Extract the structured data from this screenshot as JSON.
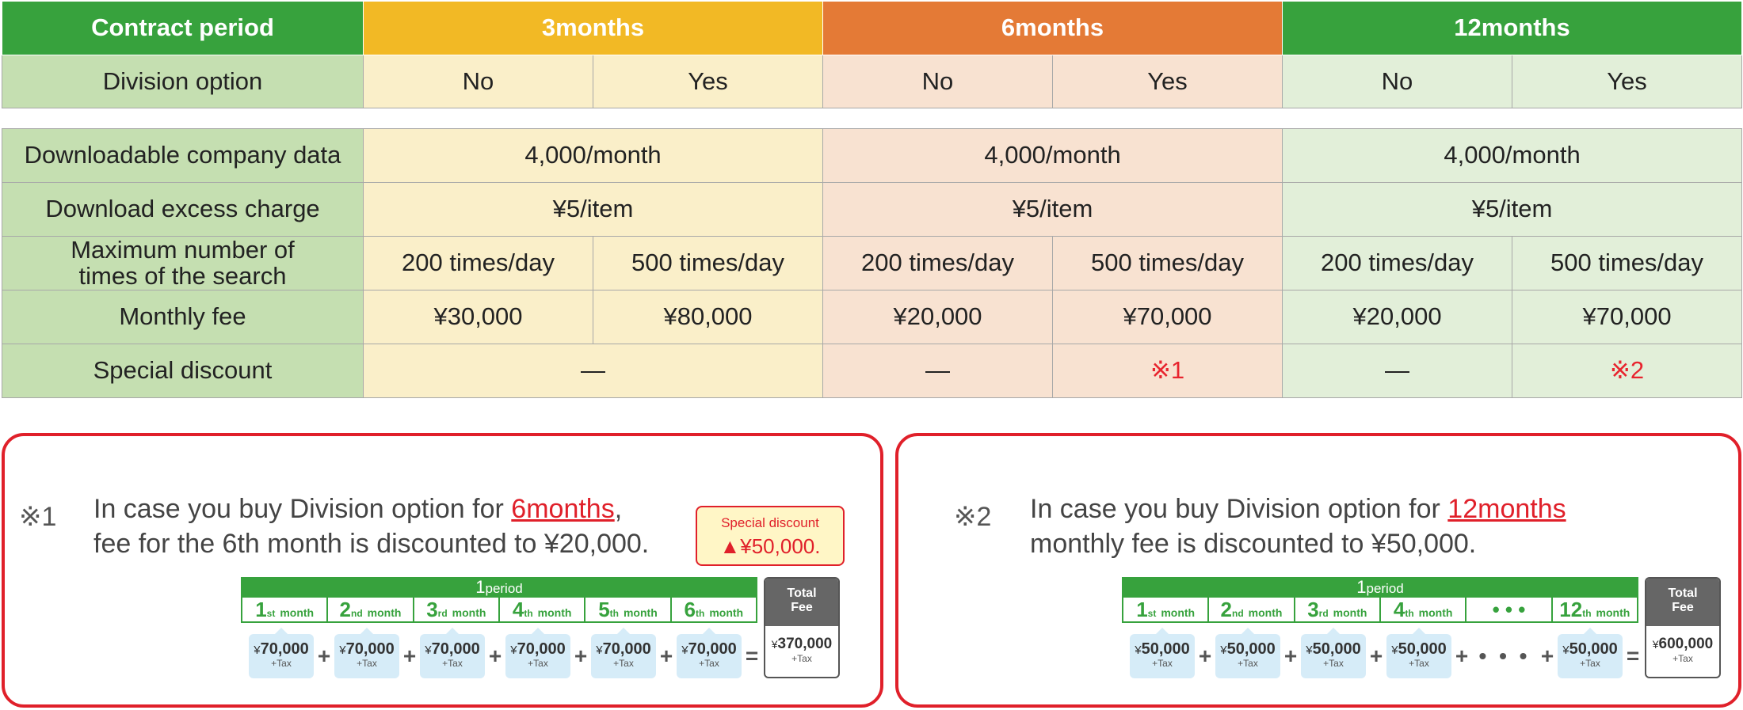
{
  "header": {
    "label": "Contract period",
    "plans": [
      "3months",
      "6months",
      "12months"
    ]
  },
  "division_option": {
    "label": "Division option",
    "values": [
      "No",
      "Yes",
      "No",
      "Yes",
      "No",
      "Yes"
    ]
  },
  "rows": {
    "downloadable": {
      "label": "Downloadable company data",
      "values": [
        "4,000/month",
        "4,000/month",
        "4,000/month"
      ]
    },
    "excess": {
      "label": "Download excess charge",
      "values": [
        "¥5/item",
        "¥5/item",
        "¥5/item"
      ]
    },
    "search": {
      "label_line1": "Maximum number of",
      "label_line2": "times of the search",
      "values": [
        "200 times/day",
        "500 times/day",
        "200 times/day",
        "500 times/day",
        "200 times/day",
        "500 times/day"
      ]
    },
    "monthly": {
      "label": "Monthly fee",
      "values": [
        "¥30,000",
        "¥80,000",
        "¥20,000",
        "¥70,000",
        "¥20,000",
        "¥70,000"
      ]
    },
    "discount": {
      "label": "Special discount",
      "values": [
        "—",
        "—",
        "※1",
        "—",
        "※2"
      ]
    }
  },
  "note1": {
    "mark": "※1",
    "line1_pre": "In case you buy Division option for ",
    "line1_hl": "6months",
    "line1_post": ",",
    "line2": "fee for the 6th month is discounted to ¥20,000.",
    "badge_title": "Special discount",
    "badge_value": "▲¥50,000.",
    "period_num": "1",
    "period_word": "period",
    "months": [
      {
        "num": "1",
        "suf": "st"
      },
      {
        "num": "2",
        "suf": "nd"
      },
      {
        "num": "3",
        "suf": "rd"
      },
      {
        "num": "4",
        "suf": "th"
      },
      {
        "num": "5",
        "suf": "th"
      },
      {
        "num": "6",
        "suf": "th"
      }
    ],
    "month_word": "month",
    "amount": "70,000",
    "total_label_1": "Total",
    "total_label_2": "Fee",
    "total": "370,000"
  },
  "note2": {
    "mark": "※2",
    "line1_pre": "In case you buy Division option for ",
    "line1_hl": "12months",
    "line2": "monthly fee is discounted to ¥50,000.",
    "period_num": "1",
    "period_word": "period",
    "months": [
      {
        "num": "1",
        "suf": "st"
      },
      {
        "num": "2",
        "suf": "nd"
      },
      {
        "num": "3",
        "suf": "rd"
      },
      {
        "num": "4",
        "suf": "th"
      },
      {
        "num": "12",
        "suf": "th"
      }
    ],
    "ellipsis": "• • •",
    "month_word": "month",
    "amount": "50,000",
    "total_label_1": "Total",
    "total_label_2": "Fee",
    "total": "600,000"
  },
  "yen": "¥",
  "tax": "+Tax",
  "plus": "+",
  "equals": "=",
  "colors": {
    "green": "#37a23d",
    "yellow": "#f2b925",
    "orange": "#e47a36",
    "red": "#e0202a"
  }
}
